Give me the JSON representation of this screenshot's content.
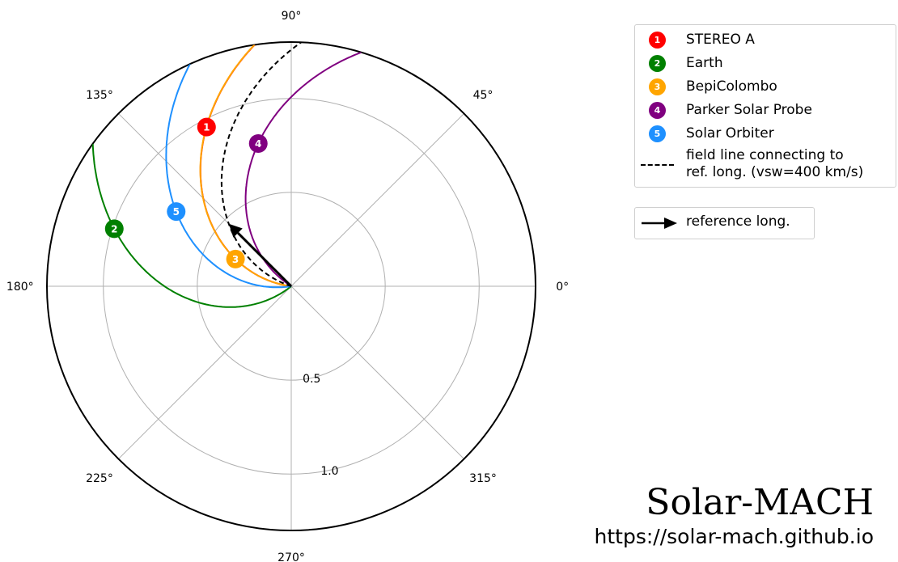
{
  "chart_data": {
    "type": "polar",
    "angle_unit": "deg",
    "angular_ticks": [
      "0°",
      "45°",
      "90°",
      "135°",
      "180°",
      "225°",
      "270°",
      "315°"
    ],
    "angular_tick_values": [
      0,
      45,
      90,
      135,
      180,
      225,
      270,
      315
    ],
    "radial_ticks": [
      "0.5",
      "1.0"
    ],
    "radial_tick_values": [
      0.5,
      1.0
    ],
    "rlim": [
      0,
      1.3
    ],
    "grid": true,
    "legend_placement": "upper right, outside plot",
    "solar_wind_speed_km_s": 400,
    "bodies": [
      {
        "index": "1",
        "name": "STEREO A",
        "color": "#ff0000",
        "r": 0.96,
        "lon_deg": 118
      },
      {
        "index": "2",
        "name": "Earth",
        "color": "#008000",
        "r": 0.99,
        "lon_deg": 162
      },
      {
        "index": "3",
        "name": "BepiColombo",
        "color": "#ffa500",
        "r": 0.33,
        "lon_deg": 154
      },
      {
        "index": "4",
        "name": "Parker Solar Probe",
        "color": "#800080",
        "r": 0.78,
        "lon_deg": 103
      },
      {
        "index": "5",
        "name": "Solar Orbiter",
        "color": "#1e90ff",
        "r": 0.73,
        "lon_deg": 147
      }
    ],
    "reference": {
      "lon_deg": 135,
      "r": 0.47,
      "line_label": "field line connecting to\nref. long. (vsw=400 km/s)",
      "arrow_label": "reference long."
    }
  },
  "legend": {
    "items": [
      {
        "marker": "1",
        "label": "STEREO A",
        "color": "#ff0000"
      },
      {
        "marker": "2",
        "label": "Earth",
        "color": "#008000"
      },
      {
        "marker": "3",
        "label": "BepiColombo",
        "color": "#ffa500"
      },
      {
        "marker": "4",
        "label": "Parker Solar Probe",
        "color": "#800080"
      },
      {
        "marker": "5",
        "label": "Solar Orbiter",
        "color": "#1e90ff"
      }
    ],
    "fieldline_line1": "field line connecting to",
    "fieldline_line2": "ref. long. (vsw=400 km/s)",
    "reference_label": "reference long."
  },
  "branding": {
    "title": "Solar-MACH",
    "url": "https://solar-mach.github.io"
  }
}
